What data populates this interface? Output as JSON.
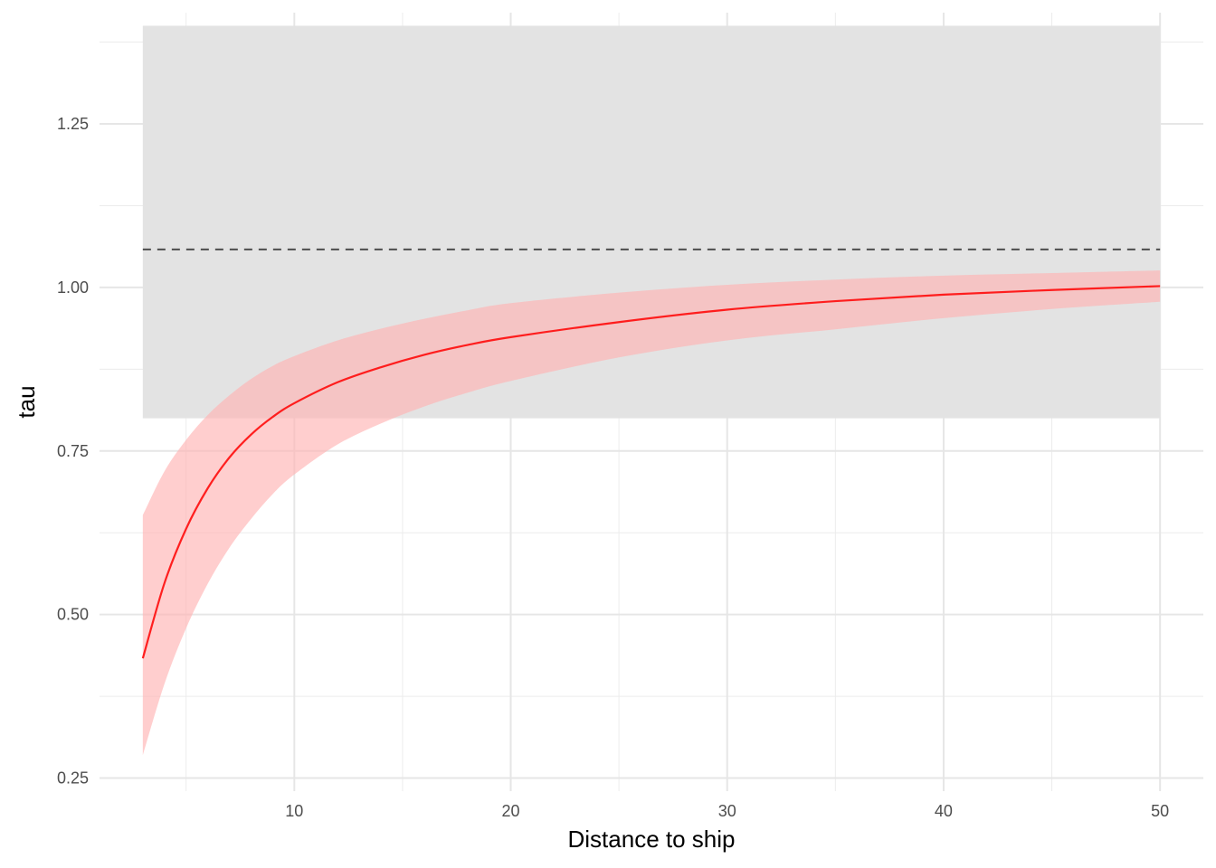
{
  "chart_data": {
    "type": "line",
    "title": "",
    "xlabel": "Distance to ship",
    "ylabel": "tau",
    "xlim": [
      1,
      52
    ],
    "ylim": [
      0.23,
      1.42
    ],
    "x_ticks": [
      10,
      20,
      30,
      40,
      50
    ],
    "x_tick_labels": [
      "10",
      "20",
      "30",
      "40",
      "50"
    ],
    "y_ticks": [
      0.25,
      0.5,
      0.75,
      1.0,
      1.25
    ],
    "y_tick_labels": [
      "0.25",
      "0.50",
      "0.75",
      "1.00",
      "1.25"
    ],
    "grid": true,
    "legend": "none",
    "reference_band": {
      "x_range": [
        3,
        50
      ],
      "ymin": 0.8,
      "ymax": 1.4,
      "color": "#e3e3e3"
    },
    "reference_line": {
      "y": 1.058,
      "style": "dashed",
      "color": "#4d4d4d"
    },
    "series": [
      {
        "color": "#ff0000",
        "ribbon_color": "#ffb3b3",
        "x": [
          3,
          4,
          5,
          6,
          7,
          8,
          9,
          10,
          12,
          14,
          16,
          18,
          20,
          25,
          30,
          35,
          40,
          45,
          50
        ],
        "y": [
          0.433,
          0.548,
          0.631,
          0.693,
          0.74,
          0.775,
          0.802,
          0.823,
          0.855,
          0.878,
          0.897,
          0.912,
          0.924,
          0.947,
          0.966,
          0.979,
          0.989,
          0.996,
          1.002
        ],
        "lower": [
          0.285,
          0.394,
          0.479,
          0.547,
          0.602,
          0.646,
          0.684,
          0.714,
          0.76,
          0.792,
          0.818,
          0.839,
          0.857,
          0.893,
          0.919,
          0.936,
          0.953,
          0.967,
          0.978
        ],
        "upper": [
          0.652,
          0.719,
          0.767,
          0.805,
          0.835,
          0.86,
          0.88,
          0.895,
          0.919,
          0.937,
          0.952,
          0.965,
          0.976,
          0.992,
          1.004,
          1.012,
          1.018,
          1.022,
          1.026
        ]
      }
    ]
  }
}
